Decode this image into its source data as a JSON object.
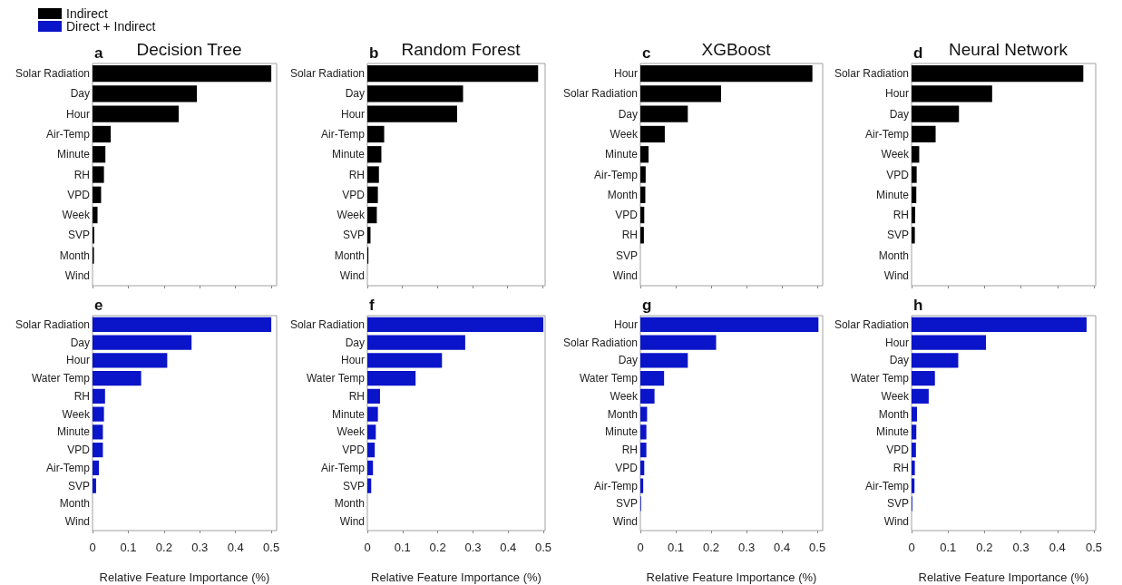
{
  "chart_data": [
    {
      "type": "bar",
      "orientation": "horizontal",
      "title": "Decision Tree",
      "annotations": [
        "a"
      ],
      "legend": "top left",
      "tick_labels": "y",
      "grid": false,
      "xlim": [
        0,
        0.515
      ],
      "xticks": [
        0,
        0.1,
        0.2,
        0.3,
        0.4,
        0.5
      ],
      "categories": [
        "Solar Radiation",
        "Day",
        "Hour",
        "Air-Temp",
        "Minute",
        "RH",
        "VPD",
        "Week",
        "SVP",
        "Month",
        "Wind"
      ],
      "series": [
        {
          "name": "Indirect",
          "color": "#000000",
          "values": [
            0.5,
            0.292,
            0.241,
            0.051,
            0.036,
            0.032,
            0.024,
            0.014,
            0.005,
            0.004,
            0
          ]
        }
      ]
    },
    {
      "type": "bar",
      "orientation": "horizontal",
      "title": "Random Forest",
      "annotations": [
        "b"
      ],
      "tick_labels": "y",
      "grid": false,
      "xlim": [
        0,
        0.507
      ],
      "xticks": [
        0,
        0.1,
        0.2,
        0.3,
        0.4,
        0.5
      ],
      "categories": [
        "Solar Radiation",
        "Day",
        "Hour",
        "Air-Temp",
        "Minute",
        "RH",
        "VPD",
        "Week",
        "SVP",
        "Month",
        "Wind"
      ],
      "series": [
        {
          "color": "#000000",
          "values": [
            0.487,
            0.273,
            0.256,
            0.048,
            0.04,
            0.033,
            0.03,
            0.027,
            0.009,
            0.003,
            0
          ]
        }
      ]
    },
    {
      "type": "bar",
      "orientation": "horizontal",
      "title": "XGBoost",
      "annotations": [
        "c"
      ],
      "tick_labels": "y",
      "grid": false,
      "xlim": [
        0,
        0.515
      ],
      "xticks": [
        0,
        0.1,
        0.2,
        0.3,
        0.4,
        0.5
      ],
      "categories": [
        "Hour",
        "Solar Radiation",
        "Day",
        "Week",
        "Minute",
        "Air-Temp",
        "Month",
        "VPD",
        "RH",
        "SVP",
        "Wind"
      ],
      "series": [
        {
          "color": "#000000",
          "values": [
            0.486,
            0.228,
            0.134,
            0.069,
            0.023,
            0.015,
            0.014,
            0.011,
            0.01,
            0,
            0
          ]
        }
      ]
    },
    {
      "type": "bar",
      "orientation": "horizontal",
      "title": "Neural Network",
      "annotations": [
        "d"
      ],
      "tick_labels": "y",
      "grid": false,
      "xlim": [
        0,
        0.505
      ],
      "xticks": [
        0,
        0.1,
        0.2,
        0.3,
        0.4,
        0.5
      ],
      "categories": [
        "Solar Radiation",
        "Hour",
        "Day",
        "Air-Temp",
        "Week",
        "VPD",
        "Minute",
        "RH",
        "SVP",
        "Month",
        "Wind"
      ],
      "series": [
        {
          "color": "#000000",
          "values": [
            0.471,
            0.221,
            0.13,
            0.066,
            0.021,
            0.014,
            0.013,
            0.01,
            0.009,
            0,
            0
          ]
        }
      ]
    },
    {
      "type": "bar",
      "orientation": "horizontal",
      "annotations": [
        "e"
      ],
      "legend": "top left",
      "xlabel": "Relative Feature Importance (%)",
      "grid": false,
      "xlim": [
        0,
        0.515
      ],
      "xticks": [
        0,
        0.1,
        0.2,
        0.3,
        0.4,
        0.5
      ],
      "categories": [
        "Solar Radiation",
        "Day",
        "Hour",
        "Water Temp",
        "RH",
        "Week",
        "Minute",
        "VPD",
        "Air-Temp",
        "SVP",
        "Month",
        "Wind"
      ],
      "series": [
        {
          "name": "Direct + Indirect",
          "color": "#0a14c8",
          "values": [
            0.5,
            0.277,
            0.209,
            0.136,
            0.035,
            0.032,
            0.029,
            0.029,
            0.018,
            0.01,
            0,
            0
          ]
        }
      ]
    },
    {
      "type": "bar",
      "orientation": "horizontal",
      "annotations": [
        "f"
      ],
      "xlabel": "Relative Feature Importance (%)",
      "grid": false,
      "xlim": [
        0,
        0.505
      ],
      "xticks": [
        0,
        0.1,
        0.2,
        0.3,
        0.4,
        0.5
      ],
      "categories": [
        "Solar Radiation",
        "Day",
        "Hour",
        "Water Temp",
        "RH",
        "Minute",
        "Week",
        "VPD",
        "Air-Temp",
        "SVP",
        "Month",
        "Wind"
      ],
      "series": [
        {
          "color": "#0a14c8",
          "values": [
            0.5,
            0.278,
            0.212,
            0.137,
            0.036,
            0.03,
            0.024,
            0.021,
            0.016,
            0.011,
            0,
            0
          ]
        }
      ]
    },
    {
      "type": "bar",
      "orientation": "horizontal",
      "annotations": [
        "g"
      ],
      "xlabel": "Relative Feature Importance (%)",
      "grid": false,
      "xlim": [
        0,
        0.515
      ],
      "xticks": [
        0,
        0.1,
        0.2,
        0.3,
        0.4,
        0.5
      ],
      "categories": [
        "Hour",
        "Solar Radiation",
        "Day",
        "Water Temp",
        "Week",
        "Month",
        "Minute",
        "RH",
        "VPD",
        "Air-Temp",
        "SVP",
        "Wind"
      ],
      "series": [
        {
          "color": "#0a14c8",
          "values": [
            0.503,
            0.214,
            0.134,
            0.067,
            0.04,
            0.019,
            0.017,
            0.017,
            0.011,
            0.008,
            0.002,
            0
          ]
        }
      ]
    },
    {
      "type": "bar",
      "orientation": "horizontal",
      "annotations": [
        "h"
      ],
      "xlabel": "Relative Feature Importance (%)",
      "grid": false,
      "xlim": [
        0,
        0.505
      ],
      "xticks": [
        0,
        0.1,
        0.2,
        0.3,
        0.4,
        0.5
      ],
      "categories": [
        "Solar Radiation",
        "Hour",
        "Day",
        "Water Temp",
        "Week",
        "Month",
        "Minute",
        "VPD",
        "RH",
        "Air-Temp",
        "SVP",
        "Wind"
      ],
      "series": [
        {
          "color": "#0a14c8",
          "values": [
            0.48,
            0.204,
            0.128,
            0.064,
            0.047,
            0.015,
            0.013,
            0.012,
            0.009,
            0.008,
            0.002,
            0
          ]
        }
      ]
    }
  ]
}
